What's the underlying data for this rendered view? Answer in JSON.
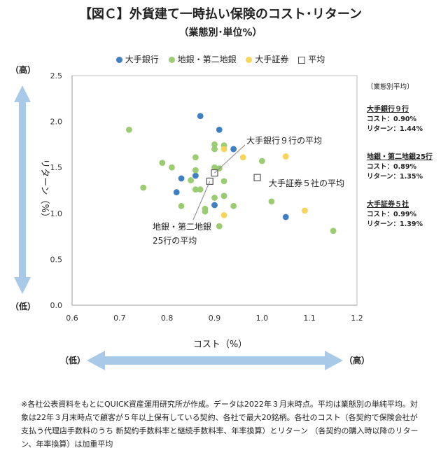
{
  "title": "【図Ｃ】外貨建て一時払い保険のコスト･リターン",
  "subtitle": "（業態別･単位%）",
  "colors": {
    "major_banks": "#3F7FC4",
    "regional_banks": "#9ACD72",
    "major_securities": "#F7D45A",
    "average": "#FFFFFF",
    "arrow": "#A9C9E8"
  },
  "legend": [
    {
      "label": "大手銀行",
      "key": "major_banks"
    },
    {
      "label": "地銀・第二地銀",
      "key": "regional_banks"
    },
    {
      "label": "大手証券",
      "key": "major_securities"
    },
    {
      "label": "平均",
      "key": "average"
    }
  ],
  "chart_data": {
    "type": "scatter",
    "xlabel": "コスト（%）",
    "ylabel": "リターン（%）",
    "xlim": [
      0.6,
      1.2
    ],
    "ylim": [
      0.0,
      2.5
    ],
    "x_ticks": [
      "0.6",
      "0.7",
      "0.8",
      "0.9",
      "1.0",
      "1.1",
      "1.2"
    ],
    "y_ticks": [
      "0.0",
      "0.5",
      "1.0",
      "1.5",
      "2.0",
      "2.5"
    ],
    "grid": false,
    "y_high_label": "（高）",
    "y_low_label": "（低）",
    "x_low_label": "（低）",
    "x_high_label": "（高）",
    "series": [
      {
        "name": "大手銀行",
        "key": "major_banks",
        "points": [
          [
            0.87,
            2.06
          ],
          [
            0.91,
            1.91
          ],
          [
            0.94,
            1.7
          ],
          [
            0.83,
            1.38
          ],
          [
            0.86,
            1.41
          ],
          [
            0.82,
            1.23
          ],
          [
            0.92,
            1.19
          ],
          [
            0.9,
            1.09
          ],
          [
            1.05,
            0.96
          ]
        ]
      },
      {
        "name": "地銀・第二地銀",
        "key": "regional_banks",
        "points": [
          [
            0.72,
            1.91
          ],
          [
            0.75,
            1.28
          ],
          [
            0.79,
            1.55
          ],
          [
            0.81,
            1.5
          ],
          [
            0.83,
            1.08
          ],
          [
            0.85,
            1.36
          ],
          [
            0.86,
            1.26
          ],
          [
            0.86,
            1.47
          ],
          [
            0.86,
            1.61
          ],
          [
            0.87,
            1.26
          ],
          [
            0.88,
            1.05
          ],
          [
            0.88,
            1.02
          ],
          [
            0.9,
            1.7
          ],
          [
            0.9,
            1.75
          ],
          [
            0.9,
            1.5
          ],
          [
            0.9,
            1.17
          ],
          [
            0.91,
            1.49
          ],
          [
            0.92,
            1.74
          ],
          [
            0.92,
            1.35
          ],
          [
            0.92,
            1.19
          ],
          [
            0.94,
            1.08
          ],
          [
            0.91,
            0.86
          ],
          [
            1.0,
            1.57
          ],
          [
            1.02,
            1.13
          ],
          [
            1.15,
            0.81
          ]
        ]
      },
      {
        "name": "大手証券",
        "key": "major_securities",
        "points": [
          [
            0.92,
            1.7
          ],
          [
            0.96,
            1.61
          ],
          [
            1.05,
            1.62
          ],
          [
            1.09,
            1.03
          ],
          [
            0.92,
            0.98
          ]
        ]
      },
      {
        "name": "平均",
        "key": "average",
        "points": [
          [
            0.9,
            1.44
          ],
          [
            0.89,
            1.35
          ],
          [
            0.99,
            1.39
          ]
        ]
      }
    ],
    "annotations": [
      {
        "id": "major_banks_avg",
        "lines": [
          "大手銀行９行の平均"
        ]
      },
      {
        "id": "securities_avg",
        "lines": [
          "大手証券５社の平均"
        ]
      },
      {
        "id": "regional_avg",
        "lines": [
          "地銀・第二地銀",
          "25行の平均"
        ]
      }
    ]
  },
  "sidebar": {
    "heading": "〔業態別平均〕",
    "groups": [
      {
        "name": "大手銀行９行",
        "cost": "コスト：0.90%",
        "ret": "リターン：1.44%"
      },
      {
        "name": "地銀・第二地銀25行",
        "cost": "コスト：0.89%",
        "ret": "リターン：1.35%"
      },
      {
        "name": "大手証券５社",
        "cost": "コスト：0.99%",
        "ret": "リターン：1.39%"
      }
    ]
  },
  "note": "※各社公表資料をもとにQUICK資産運用研究所が作成。データは2022年３月末時点。平均は業態別の単純平均。対象は22年３月末時点で顧客が５年以上保有している契約、各社で最大20銘柄。各社のコスト（各契約で保険会社が支払う代理店手数料のうち 新契約手数料率と継続手数料率、年率換算）とリターン （各契約の購入時以降のリターン、年率換算）は加重平均"
}
